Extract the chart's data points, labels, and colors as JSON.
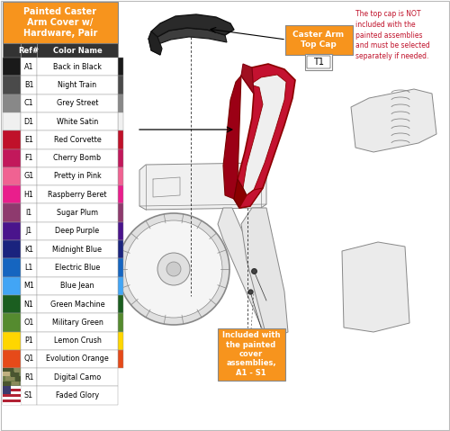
{
  "title": "Painted Caster\nArm Cover w/\nHardware, Pair",
  "title_bg": "#F7941D",
  "title_text_color": "#FFFFFF",
  "header_ref": "Ref#",
  "header_color": "Color Name",
  "header_bg": "#333333",
  "header_text_color": "#FFFFFF",
  "rows": [
    {
      "ref": "A1",
      "name": "Back in Black",
      "color": "#1A1A1A"
    },
    {
      "ref": "B1",
      "name": "Night Train",
      "color": "#4A4A4A"
    },
    {
      "ref": "C1",
      "name": "Grey Street",
      "color": "#888888"
    },
    {
      "ref": "D1",
      "name": "White Satin",
      "color": "#F0F0F0"
    },
    {
      "ref": "E1",
      "name": "Red Corvette",
      "color": "#C0112A"
    },
    {
      "ref": "F1",
      "name": "Cherry Bomb",
      "color": "#C2185B"
    },
    {
      "ref": "G1",
      "name": "Pretty in Pink",
      "color": "#F06292"
    },
    {
      "ref": "H1",
      "name": "Raspberry Beret",
      "color": "#E91E8C"
    },
    {
      "ref": "I1",
      "name": "Sugar Plum",
      "color": "#8E3A6E"
    },
    {
      "ref": "J1",
      "name": "Deep Purple",
      "color": "#4A148C"
    },
    {
      "ref": "K1",
      "name": "Midnight Blue",
      "color": "#1A237E"
    },
    {
      "ref": "L1",
      "name": "Electric Blue",
      "color": "#1565C0"
    },
    {
      "ref": "M1",
      "name": "Blue Jean",
      "color": "#42A5F5"
    },
    {
      "ref": "N1",
      "name": "Green Machine",
      "color": "#1B5E20"
    },
    {
      "ref": "O1",
      "name": "Military Green",
      "color": "#558B2F"
    },
    {
      "ref": "P1",
      "name": "Lemon Crush",
      "color": "#FFD600"
    },
    {
      "ref": "Q1",
      "name": "Evolution Orange",
      "color": "#E64A19"
    },
    {
      "ref": "R1",
      "name": "Digital Camo",
      "color": "camo"
    },
    {
      "ref": "S1",
      "name": "Faded Glory",
      "color": "flag"
    }
  ],
  "callout_top_cap_title": "Caster Arm\nTop Cap",
  "callout_top_cap_ref": "T1",
  "callout_top_cap_bg": "#F7941D",
  "callout_note_text": "The top cap is NOT\nincluded with the\npainted assemblies\nand must be selected\nseparately if needed.",
  "callout_note_color": "#C0112A",
  "callout_bottom_title": "Included with\nthe painted\ncover\nassemblies,\nA1 - S1",
  "callout_bottom_bg": "#F7941D",
  "bg_color": "#FFFFFF",
  "line_color": "#AAAAAA",
  "dark_line_color": "#888888"
}
